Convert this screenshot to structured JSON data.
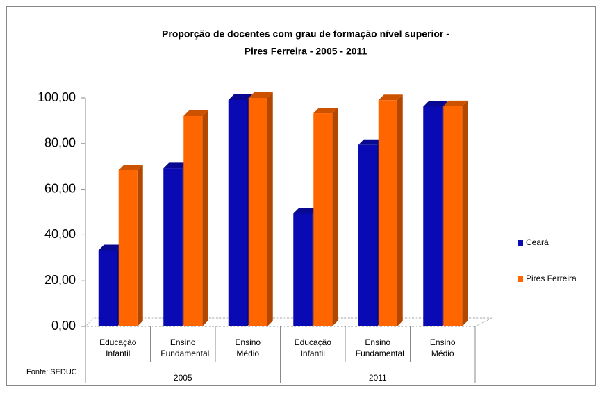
{
  "chart_data": {
    "type": "bar3d",
    "title": [
      "Proporção de docentes com grau de formação nível superior -",
      "Pires Ferreira  - 2005 - 2011"
    ],
    "categories": [
      "Educação Infantil",
      "Ensino Fundamental",
      "Ensino Médio",
      "Educação Infantil",
      "Ensino Fundamental",
      "Ensino Médio"
    ],
    "category_groups": [
      "2005",
      "2011"
    ],
    "series": [
      {
        "name": "Ceará",
        "color": "#0a0ab4",
        "values": [
          33.3,
          69.2,
          99.1,
          49.4,
          79.4,
          96.2
        ]
      },
      {
        "name": "Pires Ferreira",
        "color": "#ff6600",
        "values": [
          68.4,
          92.1,
          100,
          93.3,
          99.0,
          96.4
        ]
      }
    ],
    "ylim": [
      0,
      100
    ],
    "yticks": [
      {
        "value": 0,
        "label": "0,00"
      },
      {
        "value": 20,
        "label": "20,00"
      },
      {
        "value": 40,
        "label": "40,00"
      },
      {
        "value": 60,
        "label": "60,00"
      },
      {
        "value": 80,
        "label": "80,00"
      },
      {
        "value": 100,
        "label": "100,00"
      }
    ],
    "source": "Fonte: SEDUC",
    "legend": "right"
  }
}
